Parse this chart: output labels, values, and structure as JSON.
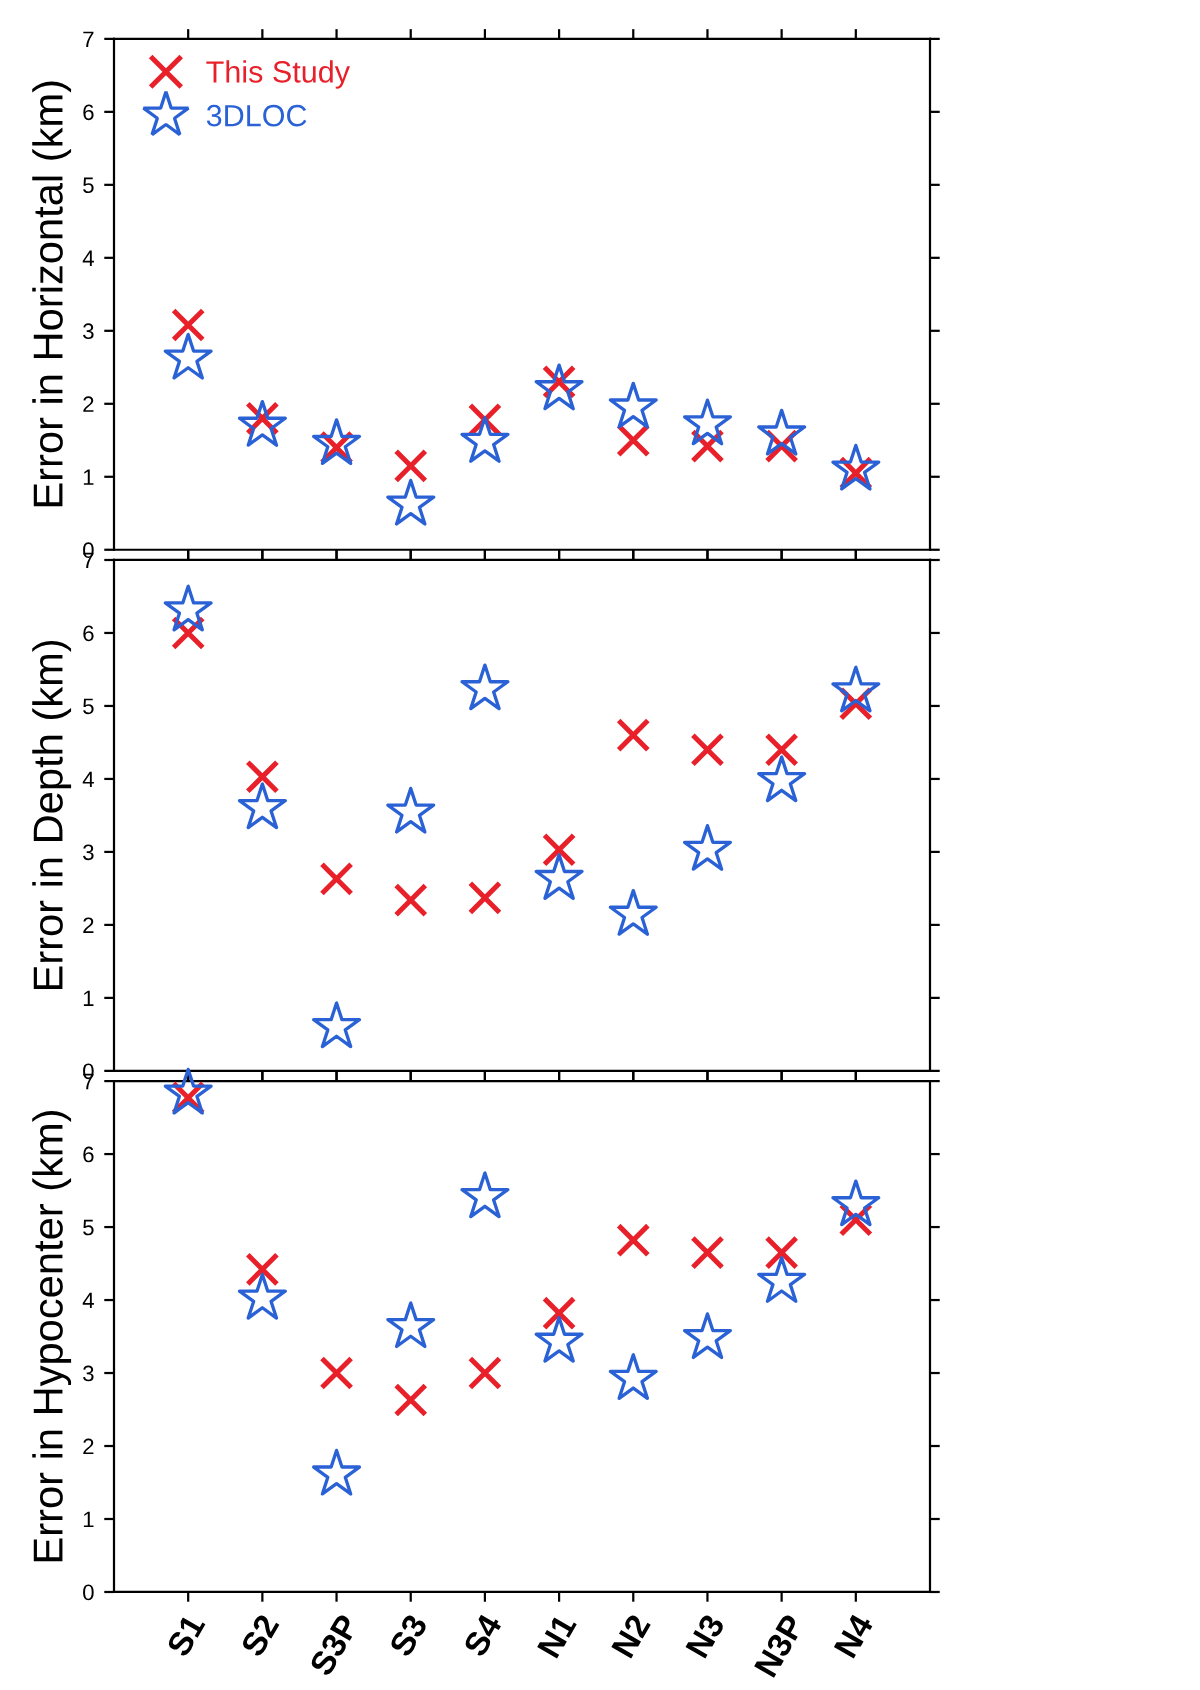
{
  "chart_data": [
    {
      "type": "scatter",
      "ylabel": "Error in Horizontal (km)",
      "categories": [
        null,
        null,
        null,
        null,
        null,
        null,
        null,
        null,
        null,
        null
      ],
      "ylim": [
        0,
        7
      ],
      "yticks": [
        0,
        1,
        2,
        3,
        4,
        5,
        6,
        7
      ],
      "grid": false,
      "legend": "top left",
      "tick_labels": "y",
      "series": [
        {
          "name": "This Study",
          "color": "#e8202a",
          "marker": "cross",
          "values": [
            3.08,
            1.8,
            1.4,
            1.15,
            1.78,
            2.3,
            1.5,
            1.42,
            1.42,
            1.05
          ]
        },
        {
          "name": "3DLOC",
          "color": "#2a62d6",
          "marker": "star",
          "values": [
            2.62,
            1.7,
            1.45,
            0.62,
            1.48,
            2.2,
            1.95,
            1.72,
            1.58,
            1.1
          ]
        }
      ]
    },
    {
      "type": "scatter",
      "ylabel": "Error in Depth (km)",
      "categories": [
        null,
        null,
        null,
        null,
        null,
        null,
        null,
        null,
        null,
        null
      ],
      "ylim": [
        0,
        7
      ],
      "yticks": [
        0,
        1,
        2,
        3,
        4,
        5,
        6,
        7
      ],
      "grid": false,
      "tick_labels": "y",
      "series": [
        {
          "color": "#e8202a",
          "marker": "cross",
          "values": [
            6.0,
            4.03,
            2.63,
            2.34,
            2.37,
            3.03,
            4.6,
            4.4,
            4.4,
            5.03
          ]
        },
        {
          "color": "#2a62d6",
          "marker": "star",
          "values": [
            6.31,
            3.6,
            0.6,
            3.54,
            5.23,
            2.63,
            2.14,
            3.03,
            3.97,
            5.2
          ]
        }
      ]
    },
    {
      "type": "scatter",
      "ylabel": "Error in Hypocenter (km)",
      "categories": [
        "S1",
        "S2",
        "S3P",
        "S3",
        "S4",
        "N1",
        "N2",
        "N3",
        "N3P",
        "N4"
      ],
      "ylim": [
        0,
        7
      ],
      "yticks": [
        0,
        1,
        2,
        3,
        4,
        5,
        6,
        7
      ],
      "grid": false,
      "series": [
        {
          "color": "#e8202a",
          "marker": "cross",
          "values": [
            6.77,
            4.42,
            3.0,
            2.63,
            3.0,
            3.82,
            4.82,
            4.65,
            4.65,
            5.1
          ]
        },
        {
          "color": "#2a62d6",
          "marker": "star",
          "values": [
            6.83,
            4.02,
            1.61,
            3.63,
            5.41,
            3.43,
            2.92,
            3.48,
            4.25,
            5.3
          ]
        }
      ]
    }
  ]
}
